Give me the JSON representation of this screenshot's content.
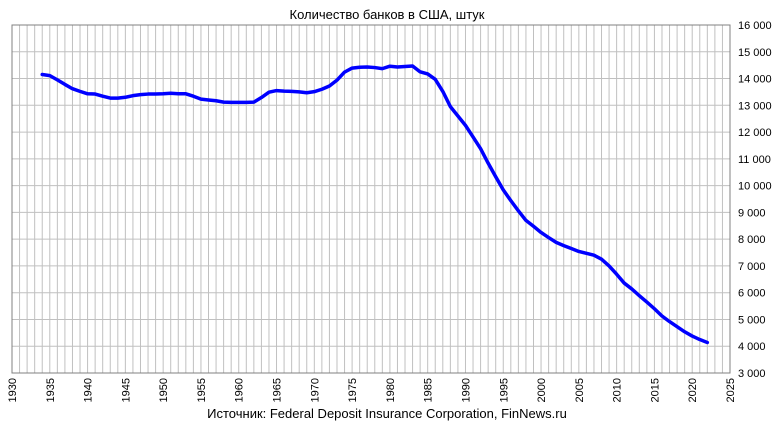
{
  "chart_data": {
    "type": "line",
    "title": "Количество банков в США, штук",
    "source": "Источник: Federal Deposit Insurance Corporation,  FinNews.ru",
    "xlabel": "",
    "ylabel": "",
    "xlim": [
      1930,
      2025
    ],
    "ylim": [
      3000,
      16000
    ],
    "x_ticks": [
      1930,
      1935,
      1940,
      1945,
      1950,
      1955,
      1960,
      1965,
      1970,
      1975,
      1980,
      1985,
      1990,
      1995,
      2000,
      2005,
      2010,
      2015,
      2020,
      2025
    ],
    "y_ticks": [
      3000,
      4000,
      5000,
      6000,
      7000,
      8000,
      9000,
      10000,
      11000,
      12000,
      13000,
      14000,
      15000,
      16000
    ],
    "y_tick_labels": [
      "3 000",
      "4 000",
      "5 000",
      "6 000",
      "7 000",
      "8 000",
      "9 000",
      "10 000",
      "11 000",
      "12 000",
      "13 000",
      "14 000",
      "15 000",
      "16 000"
    ],
    "grid": true,
    "line_color": "#0000ff",
    "grid_color": "#c0c0c0",
    "series": [
      {
        "x": [
          1934,
          1935,
          1936,
          1937,
          1938,
          1939,
          1940,
          1941,
          1942,
          1943,
          1944,
          1945,
          1946,
          1947,
          1948,
          1949,
          1950,
          1951,
          1952,
          1953,
          1954,
          1955,
          1956,
          1957,
          1958,
          1959,
          1960,
          1961,
          1962,
          1963,
          1964,
          1965,
          1966,
          1967,
          1968,
          1969,
          1970,
          1971,
          1972,
          1973,
          1974,
          1975,
          1976,
          1977,
          1978,
          1979,
          1980,
          1981,
          1982,
          1983,
          1984,
          1985,
          1986,
          1987,
          1988,
          1989,
          1990,
          1991,
          1992,
          1993,
          1994,
          1995,
          1996,
          1997,
          1998,
          1999,
          2000,
          2001,
          2002,
          2003,
          2004,
          2005,
          2006,
          2007,
          2008,
          2009,
          2010,
          2011,
          2012,
          2013,
          2014,
          2015,
          2016,
          2017,
          2018,
          2019,
          2020,
          2021,
          2022
        ],
        "values": [
          14150,
          14110,
          13950,
          13780,
          13620,
          13520,
          13430,
          13420,
          13340,
          13270,
          13270,
          13300,
          13360,
          13400,
          13420,
          13420,
          13430,
          13450,
          13430,
          13430,
          13340,
          13230,
          13200,
          13170,
          13120,
          13110,
          13110,
          13110,
          13120,
          13290,
          13490,
          13550,
          13530,
          13520,
          13500,
          13470,
          13510,
          13600,
          13720,
          13940,
          14240,
          14390,
          14420,
          14430,
          14410,
          14370,
          14460,
          14430,
          14450,
          14470,
          14250,
          14170,
          13970,
          13520,
          12950,
          12600,
          12250,
          11820,
          11380,
          10840,
          10330,
          9840,
          9440,
          9060,
          8700,
          8480,
          8250,
          8060,
          7880,
          7760,
          7650,
          7540,
          7470,
          7400,
          7250,
          7000,
          6690,
          6360,
          6140,
          5890,
          5650,
          5400,
          5130,
          4920,
          4730,
          4540,
          4380,
          4250,
          4140
        ]
      }
    ]
  }
}
